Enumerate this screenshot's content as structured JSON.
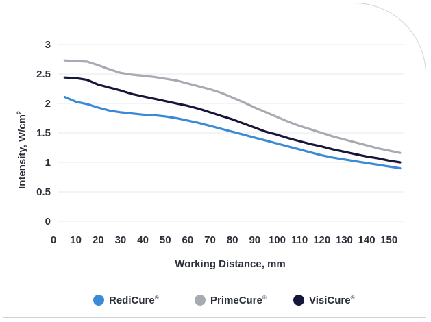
{
  "chart_data": {
    "type": "line",
    "xlabel": "Working Distance, mm",
    "ylabel": "Intensity, W/cm",
    "ylabel_superscript": "2",
    "xlim": [
      0,
      155
    ],
    "ylim": [
      0,
      3
    ],
    "xticks": [
      "0",
      "10",
      "20",
      "30",
      "40",
      "50",
      "60",
      "70",
      "80",
      "90",
      "100",
      "110",
      "120",
      "130",
      "140",
      "150"
    ],
    "yticks": [
      "0",
      "0.5",
      "1",
      "1.5",
      "2",
      "2.5",
      "3"
    ],
    "grid": "horizontal",
    "legend_position": "bottom",
    "series": [
      {
        "name": "RediCure",
        "mark": "®",
        "color": "#3b8ad6",
        "x": [
          5,
          10,
          15,
          20,
          25,
          30,
          35,
          40,
          45,
          50,
          55,
          60,
          65,
          70,
          75,
          80,
          85,
          90,
          95,
          100,
          105,
          110,
          115,
          120,
          125,
          130,
          135,
          140,
          145,
          150,
          155
        ],
        "y": [
          2.11,
          2.03,
          1.99,
          1.93,
          1.88,
          1.85,
          1.83,
          1.81,
          1.8,
          1.78,
          1.75,
          1.71,
          1.67,
          1.62,
          1.57,
          1.52,
          1.47,
          1.42,
          1.37,
          1.32,
          1.27,
          1.22,
          1.17,
          1.12,
          1.08,
          1.05,
          1.02,
          0.99,
          0.96,
          0.93,
          0.9
        ]
      },
      {
        "name": "PrimeCure",
        "mark": "®",
        "color": "#a7abb1",
        "x": [
          5,
          10,
          15,
          20,
          25,
          30,
          35,
          40,
          45,
          50,
          55,
          60,
          65,
          70,
          75,
          80,
          85,
          90,
          95,
          100,
          105,
          110,
          115,
          120,
          125,
          130,
          135,
          140,
          145,
          150,
          155
        ],
        "y": [
          2.73,
          2.72,
          2.71,
          2.65,
          2.58,
          2.52,
          2.49,
          2.47,
          2.45,
          2.42,
          2.39,
          2.34,
          2.29,
          2.24,
          2.18,
          2.1,
          2.02,
          1.93,
          1.85,
          1.77,
          1.69,
          1.62,
          1.56,
          1.5,
          1.44,
          1.39,
          1.34,
          1.29,
          1.24,
          1.2,
          1.16
        ]
      },
      {
        "name": "VisiCure",
        "mark": "®",
        "color": "#16163a",
        "x": [
          5,
          10,
          15,
          20,
          25,
          30,
          35,
          40,
          45,
          50,
          55,
          60,
          65,
          70,
          75,
          80,
          85,
          90,
          95,
          100,
          105,
          110,
          115,
          120,
          125,
          130,
          135,
          140,
          145,
          150,
          155
        ],
        "y": [
          2.44,
          2.43,
          2.4,
          2.32,
          2.27,
          2.22,
          2.16,
          2.12,
          2.08,
          2.04,
          2.0,
          1.96,
          1.91,
          1.85,
          1.79,
          1.73,
          1.66,
          1.59,
          1.52,
          1.47,
          1.41,
          1.36,
          1.31,
          1.27,
          1.22,
          1.18,
          1.14,
          1.1,
          1.07,
          1.03,
          1.0
        ]
      }
    ]
  }
}
